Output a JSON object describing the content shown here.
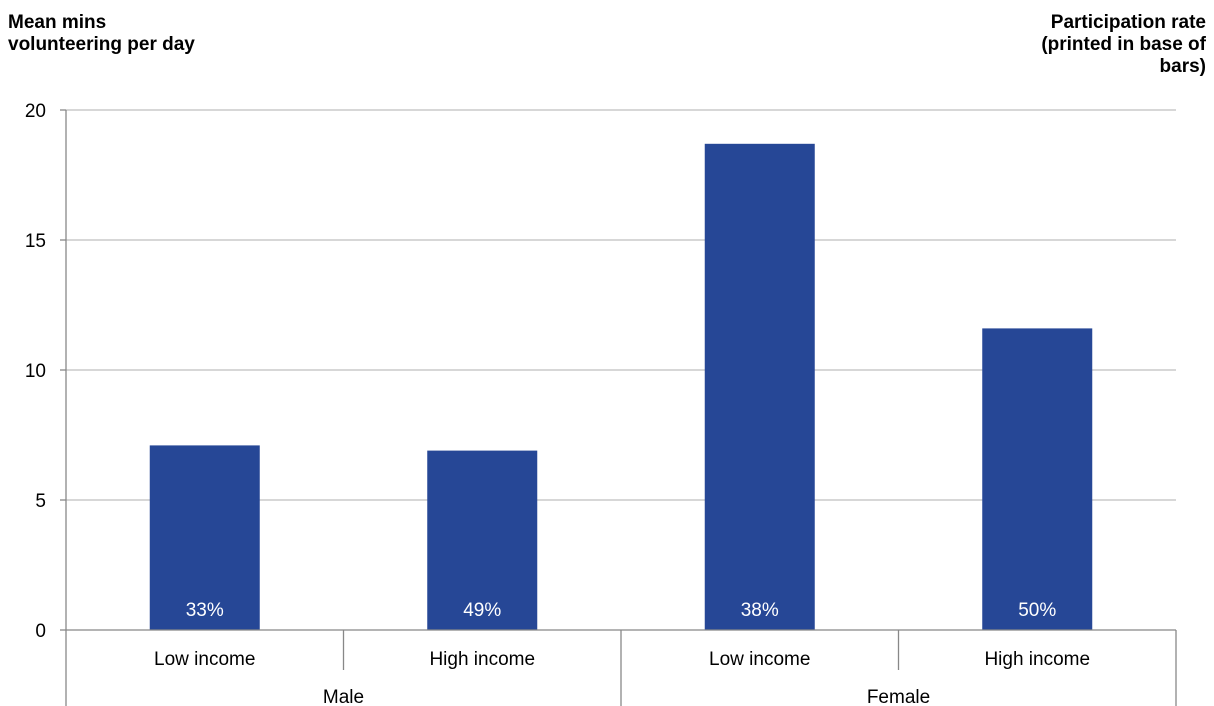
{
  "chart_data": {
    "type": "bar",
    "ylabel": "Mean mins\nvolunteering per day",
    "secondary_label": "Participation rate\n(printed in base of\nbars)",
    "groups": [
      {
        "name": "Male",
        "categories": [
          "Low income",
          "High income"
        ]
      },
      {
        "name": "Female",
        "categories": [
          "Low income",
          "High income"
        ]
      }
    ],
    "categories": [
      "Low income",
      "High income",
      "Low income",
      "High income"
    ],
    "values": [
      7.1,
      6.9,
      18.7,
      11.6
    ],
    "bar_labels": [
      "33%",
      "49%",
      "38%",
      "50%"
    ],
    "ylim": [
      0,
      20
    ],
    "yticks": [
      0,
      5,
      10,
      15,
      20
    ],
    "grid": true,
    "bar_color": "#264796",
    "grid_color": "#bfbfbf"
  }
}
